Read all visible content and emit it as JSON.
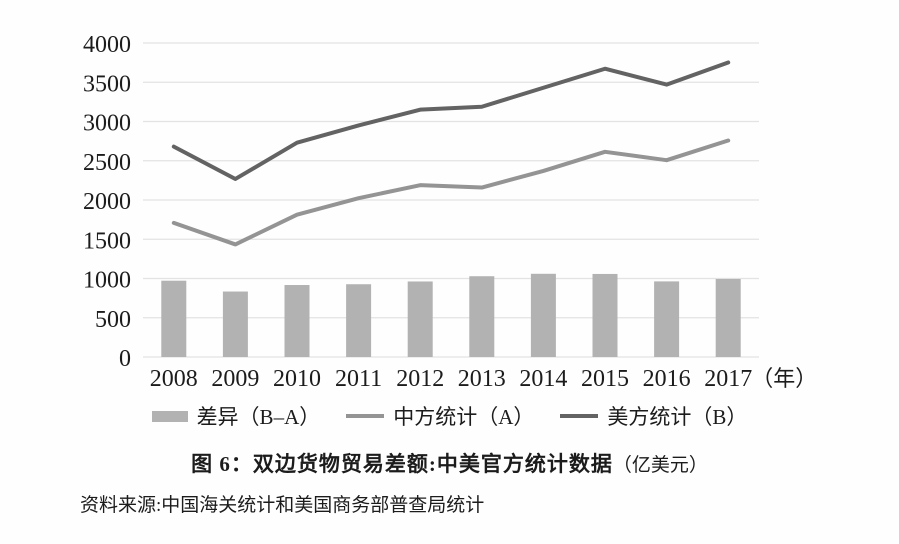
{
  "figure": {
    "title_main": "图 6：双边货物贸易差额:中美官方统计数据",
    "title_unit": "（亿美元）",
    "source": "资料来源:中国海关统计和美国商务部普查局统计"
  },
  "legend": [
    {
      "label": "差异（B–A）",
      "swatch": "bar",
      "color": "#b2b2b2"
    },
    {
      "label": "中方统计（A）",
      "swatch": "line",
      "color": "#949494"
    },
    {
      "label": "美方统计（B）",
      "swatch": "line",
      "color": "#636363"
    }
  ],
  "chart_data": {
    "type": "combo-bar-line",
    "title": "图 6：双边货物贸易差额:中美官方统计数据（亿美元）",
    "categories": [
      "2008",
      "2009",
      "2010",
      "2011",
      "2012",
      "2013",
      "2014",
      "2015",
      "2016",
      "2017"
    ],
    "series": [
      {
        "name": "差异（B–A）",
        "kind": "bar",
        "color": "#b2b2b2",
        "values": [
          972,
          834,
          917,
          927,
          962,
          1029,
          1060,
          1058,
          963,
          994
        ]
      },
      {
        "name": "中方统计（A）",
        "kind": "line",
        "color": "#949494",
        "values": [
          1708,
          1434,
          1813,
          2023,
          2189,
          2159,
          2370,
          2614,
          2507,
          2758
        ]
      },
      {
        "name": "美方统计（B）",
        "kind": "line",
        "color": "#636363",
        "values": [
          2680,
          2268,
          2730,
          2950,
          3151,
          3188,
          3430,
          3672,
          3470,
          3752
        ]
      }
    ],
    "xlabel": "",
    "ylabel": "",
    "x_unit": "（年）",
    "ylim": [
      0,
      4000
    ],
    "yticks": [
      0,
      500,
      1000,
      1500,
      2000,
      2500,
      3000,
      3500,
      4000
    ],
    "grid": "horizontal",
    "grid_color": "#e3e3e3",
    "legend_position": "bottom"
  }
}
